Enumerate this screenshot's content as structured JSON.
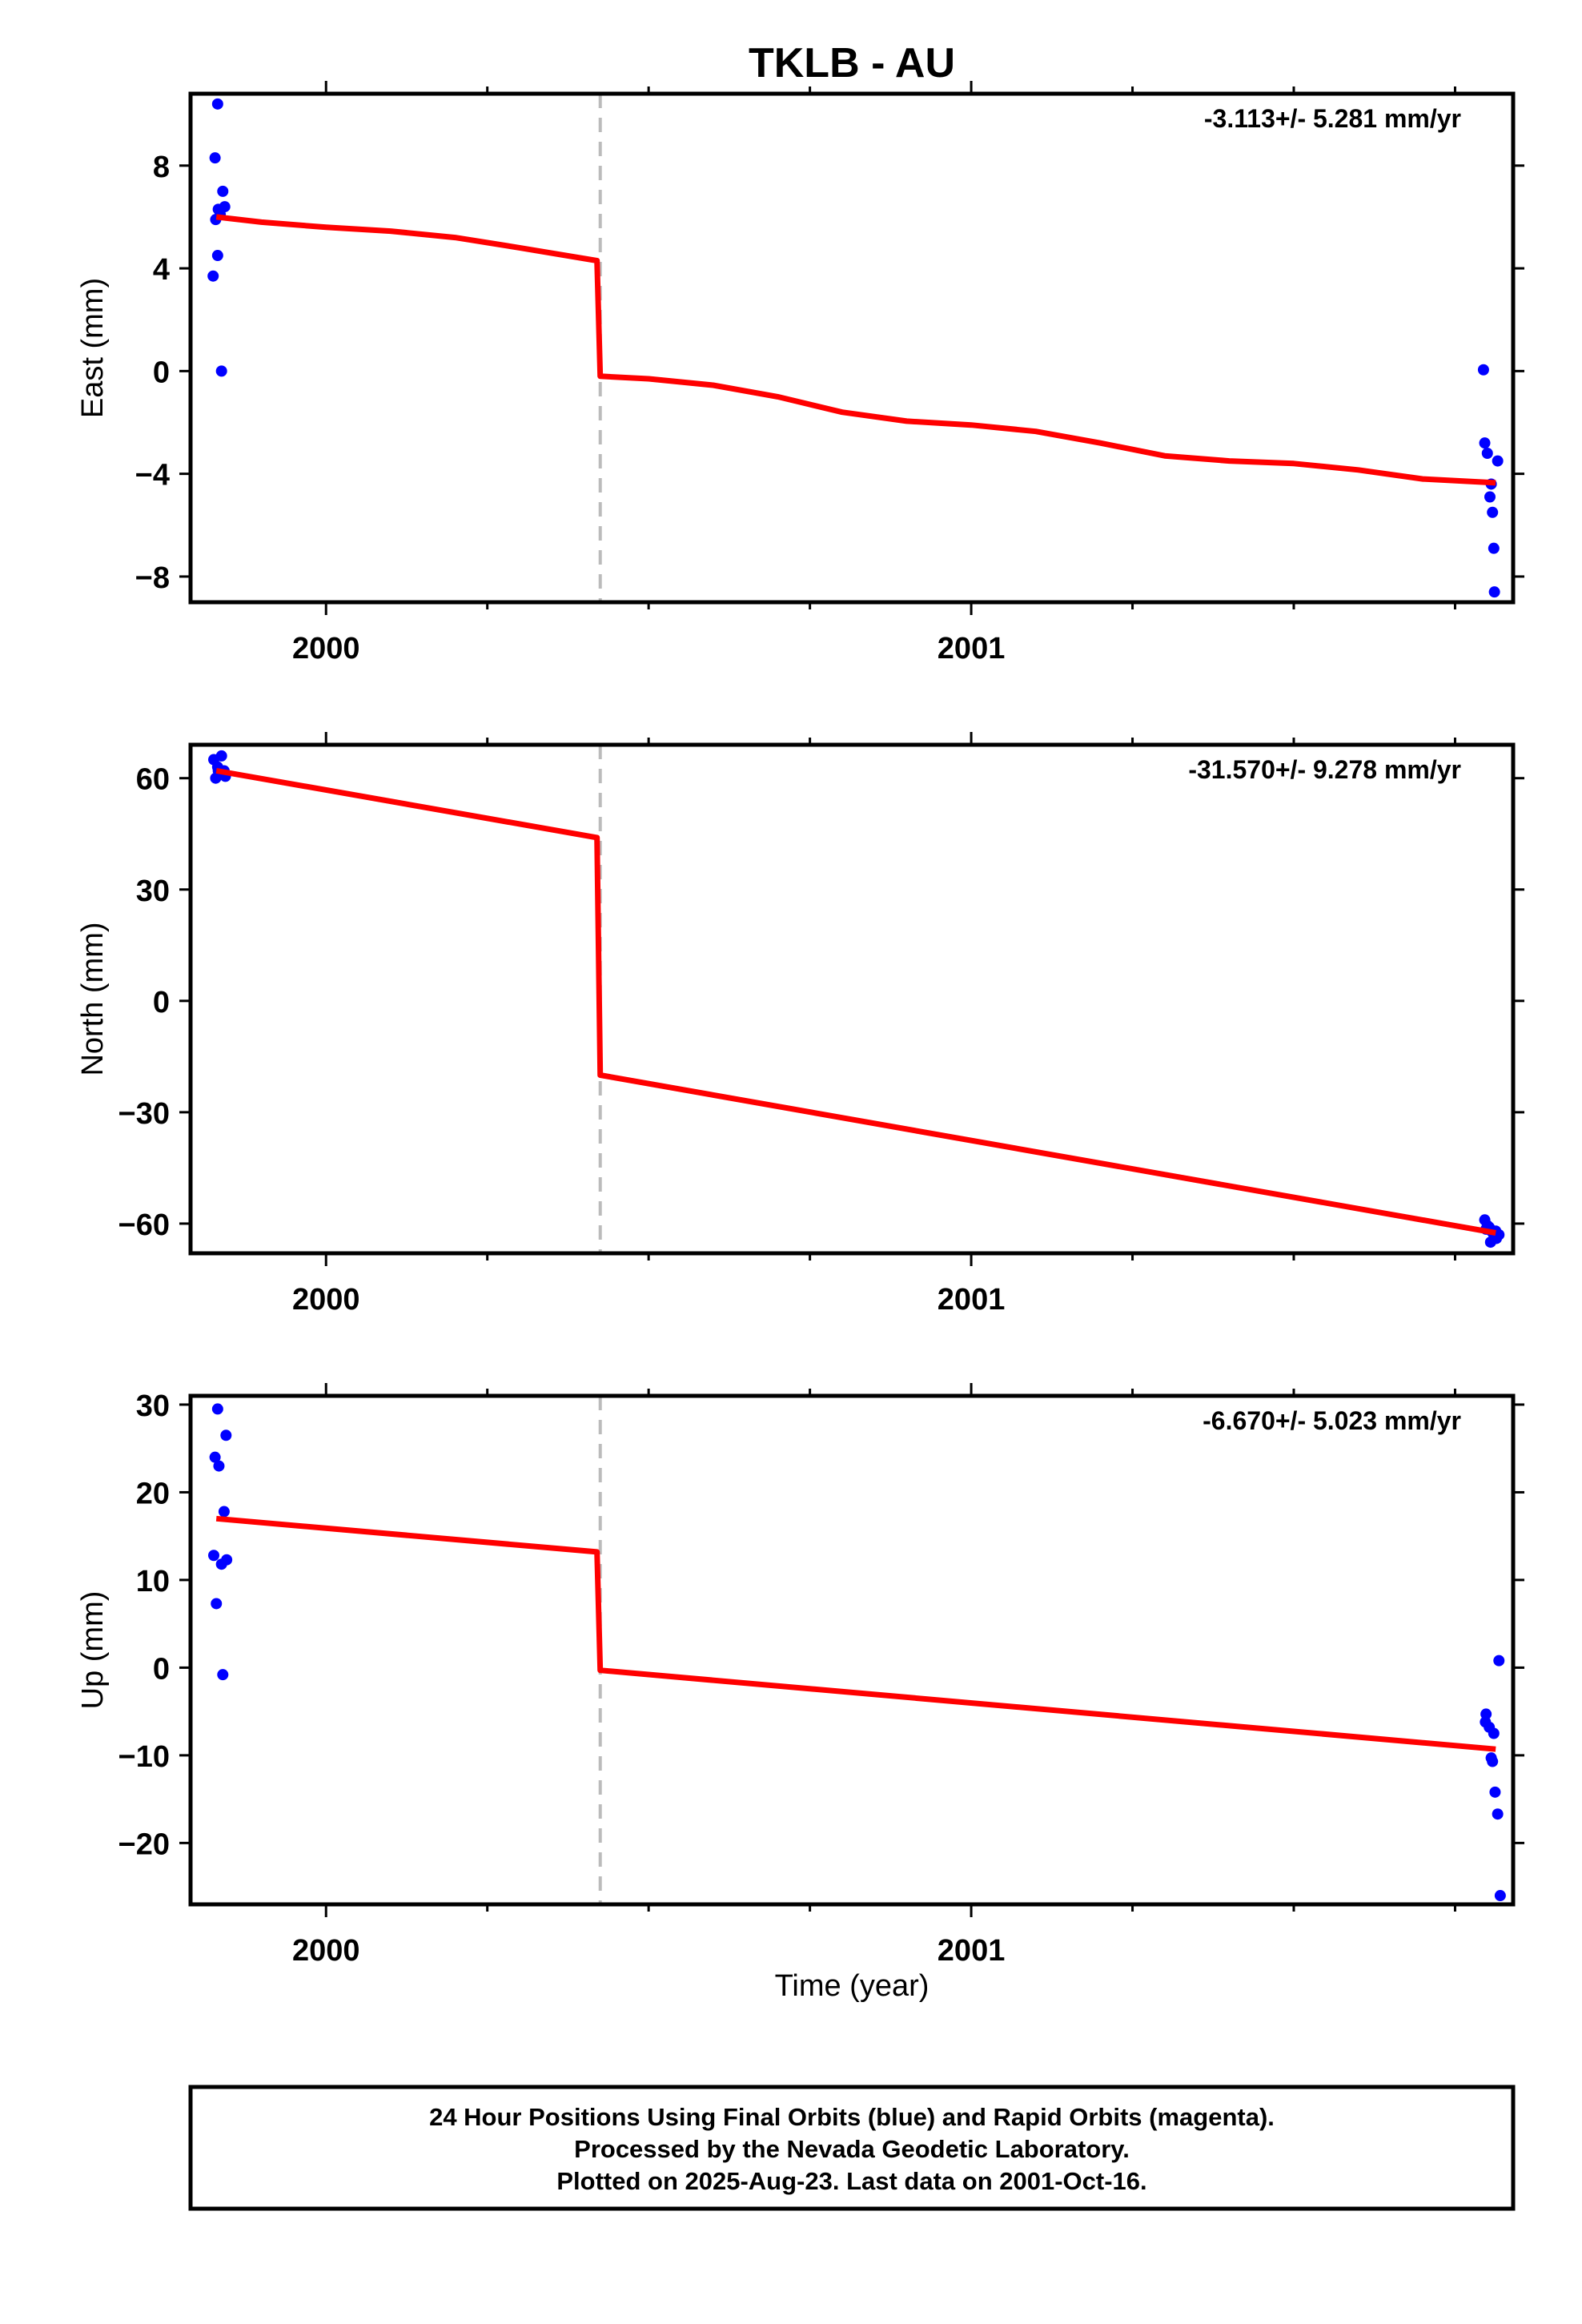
{
  "chart_data": {
    "type": "scatter",
    "title": "TKLB - AU",
    "xlabel": "Time (year)",
    "xlim": [
      1999.79,
      2001.84
    ],
    "x_ticks": [
      2000,
      2001
    ],
    "x_tick_labels": [
      "2000",
      "2001"
    ],
    "break_epoch": 2000.425,
    "colors": {
      "final_orbits": "#0000ff",
      "model": "#ff0000",
      "break_line": "#bbbbbb"
    },
    "panels": [
      {
        "ylabel": "East (mm)",
        "ylim": [
          -9.0,
          10.8
        ],
        "y_ticks": [
          -8,
          -4,
          0,
          4,
          8
        ],
        "y_tick_labels": [
          "−8",
          "−4",
          "0",
          "4",
          "8"
        ],
        "rate_label": "-3.113+/- 5.281 mm/yr",
        "points": [
          [
            1999.832,
            10.4
          ],
          [
            1999.828,
            8.3
          ],
          [
            1999.84,
            7.0
          ],
          [
            1999.843,
            6.4
          ],
          [
            1999.833,
            6.3
          ],
          [
            1999.829,
            5.9
          ],
          [
            1999.836,
            6.1
          ],
          [
            1999.832,
            4.5
          ],
          [
            1999.825,
            3.7
          ],
          [
            1999.838,
            0.0
          ],
          [
            2001.794,
            0.05
          ],
          [
            2001.796,
            -2.8
          ],
          [
            2001.8,
            -3.2
          ],
          [
            2001.816,
            -3.5
          ],
          [
            2001.806,
            -4.4
          ],
          [
            2001.804,
            -4.9
          ],
          [
            2001.808,
            -5.5
          ],
          [
            2001.81,
            -6.9
          ],
          [
            2001.811,
            -8.6
          ]
        ],
        "model": [
          [
            1999.83,
            6.0
          ],
          [
            1999.9,
            5.8
          ],
          [
            2000.0,
            5.6
          ],
          [
            2000.1,
            5.45
          ],
          [
            2000.2,
            5.2
          ],
          [
            2000.3,
            4.8
          ],
          [
            2000.42,
            4.3
          ],
          [
            2000.425,
            -0.2
          ],
          [
            2000.5,
            -0.3
          ],
          [
            2000.6,
            -0.55
          ],
          [
            2000.7,
            -1.0
          ],
          [
            2000.8,
            -1.6
          ],
          [
            2000.9,
            -1.95
          ],
          [
            2001.0,
            -2.1
          ],
          [
            2001.1,
            -2.35
          ],
          [
            2001.2,
            -2.8
          ],
          [
            2001.3,
            -3.3
          ],
          [
            2001.4,
            -3.5
          ],
          [
            2001.5,
            -3.6
          ],
          [
            2001.6,
            -3.85
          ],
          [
            2001.7,
            -4.2
          ],
          [
            2001.813,
            -4.35
          ]
        ]
      },
      {
        "ylabel": "North (mm)",
        "ylim": [
          -68,
          69
        ],
        "y_ticks": [
          -60,
          -30,
          0,
          30,
          60
        ],
        "y_tick_labels": [
          "−60",
          "−30",
          "0",
          "30",
          "60"
        ],
        "rate_label": "-31.570+/- 9.278 mm/yr",
        "points": [
          [
            1999.826,
            65
          ],
          [
            1999.838,
            66
          ],
          [
            1999.832,
            63
          ],
          [
            1999.842,
            62
          ],
          [
            1999.829,
            60
          ],
          [
            1999.836,
            61
          ],
          [
            1999.844,
            60.5
          ],
          [
            1999.833,
            62
          ],
          [
            2001.796,
            -59
          ],
          [
            2001.8,
            -60.5
          ],
          [
            2001.803,
            -61
          ],
          [
            2001.806,
            -62
          ],
          [
            2001.81,
            -63
          ],
          [
            2001.814,
            -64
          ],
          [
            2001.818,
            -63
          ],
          [
            2001.805,
            -65
          ],
          [
            2001.813,
            -62
          ],
          [
            2001.798,
            -61.5
          ]
        ],
        "model": [
          [
            1999.83,
            62
          ],
          [
            2000.42,
            44
          ],
          [
            2000.425,
            -20
          ],
          [
            2001.813,
            -62.5
          ]
        ]
      },
      {
        "ylabel": "Up (mm)",
        "ylim": [
          -27,
          31
        ],
        "y_ticks": [
          -20,
          -10,
          0,
          10,
          20,
          30
        ],
        "y_tick_labels": [
          "−20",
          "−10",
          "0",
          "10",
          "20",
          "30"
        ],
        "rate_label": "-6.670+/- 5.023 mm/yr",
        "points": [
          [
            1999.832,
            29.5
          ],
          [
            1999.845,
            26.5
          ],
          [
            1999.828,
            24
          ],
          [
            1999.834,
            23
          ],
          [
            1999.842,
            17.8
          ],
          [
            1999.826,
            12.8
          ],
          [
            1999.846,
            12.3
          ],
          [
            1999.838,
            11.8
          ],
          [
            1999.83,
            7.3
          ],
          [
            1999.84,
            -0.8
          ],
          [
            2001.818,
            0.8
          ],
          [
            2001.798,
            -5.3
          ],
          [
            2001.797,
            -6.2
          ],
          [
            2001.803,
            -6.8
          ],
          [
            2001.81,
            -7.5
          ],
          [
            2001.806,
            -10.3
          ],
          [
            2001.808,
            -10.7
          ],
          [
            2001.812,
            -14.2
          ],
          [
            2001.816,
            -16.7
          ],
          [
            2001.82,
            -26
          ]
        ],
        "model": [
          [
            1999.83,
            17
          ],
          [
            2000.42,
            13.2
          ],
          [
            2000.425,
            -0.3
          ],
          [
            2001.813,
            -9.3
          ]
        ]
      }
    ],
    "footer": [
      "24 Hour Positions Using Final Orbits (blue) and Rapid Orbits (magenta).",
      "Processed by the Nevada Geodetic Laboratory.",
      "Plotted on 2025-Aug-23. Last data on 2001-Oct-16."
    ]
  }
}
